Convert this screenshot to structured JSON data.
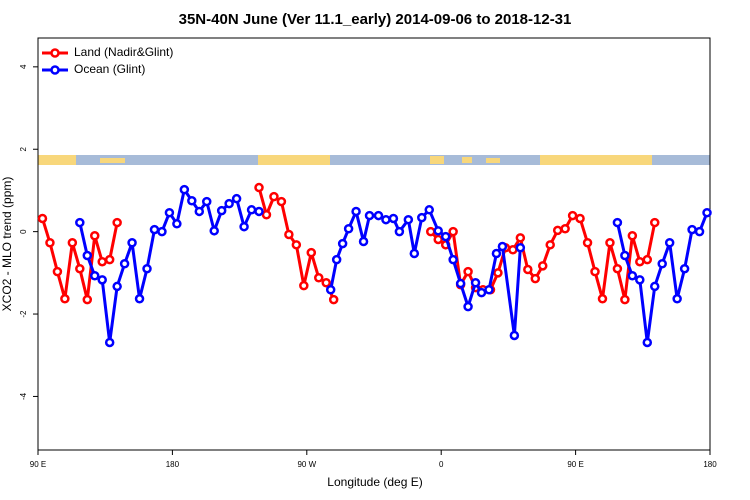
{
  "chart_data": {
    "type": "line",
    "title": "35N-40N June (Ver 11.1_early)   2014-09-06 to 2018-12-31",
    "x_label": "Longitude (deg E)",
    "y_label": "XCO2 - MLO trend (ppm)",
    "xlim": [
      90,
      540
    ],
    "ylim": [
      -5.3,
      4.7
    ],
    "xticks": [
      {
        "value": 90,
        "label": "90 E"
      },
      180,
      {
        "value": 270,
        "label": "90 W"
      },
      {
        "value": 360,
        "label": "0"
      },
      {
        "value": 450,
        "label": "90 E"
      },
      {
        "value": 540,
        "label": "180"
      }
    ],
    "yticks": [
      -4,
      -2,
      0,
      2,
      4
    ],
    "legend": "top-left",
    "series": [
      {
        "name": "Land (Nadir&Glint)",
        "color": "#ff0000",
        "x": [
          93,
          98,
          103,
          108,
          113,
          118,
          123,
          128,
          133,
          138,
          143,
          null,
          238,
          243,
          248,
          253,
          258,
          263,
          268,
          273,
          278,
          283,
          288,
          null,
          353,
          358,
          363,
          368,
          373,
          378,
          383,
          388,
          393,
          398,
          403,
          408,
          413,
          418,
          423,
          428,
          433,
          438,
          443,
          448,
          453,
          458,
          463,
          468,
          473,
          478,
          483,
          488,
          493,
          498,
          503
        ],
        "values": [
          0.32,
          -0.27,
          -0.97,
          -1.63,
          -0.27,
          -0.9,
          -1.65,
          -0.1,
          -0.73,
          -0.68,
          0.22,
          null,
          1.07,
          0.41,
          0.85,
          0.73,
          -0.07,
          -0.32,
          -1.31,
          -0.51,
          -1.12,
          -1.24,
          -1.65,
          null,
          0,
          -0.19,
          -0.32,
          0,
          -1.29,
          -0.97,
          -1.36,
          -1.41,
          -1.41,
          -1.0,
          -0.39,
          -0.44,
          -0.15,
          -0.92,
          -1.14,
          -0.83,
          -0.32,
          0.03,
          0.07,
          0.39,
          0.32,
          -0.27,
          -0.97,
          -1.63,
          -0.27,
          -0.9,
          -1.65,
          -0.1,
          -0.73,
          -0.68,
          0.22
        ]
      },
      {
        "name": "Ocean (Glint)",
        "color": "#0000ff",
        "x": [
          118,
          123,
          128,
          133,
          138,
          143,
          148,
          153,
          158,
          163,
          168,
          173,
          178,
          183,
          188,
          193,
          198,
          203,
          208,
          213,
          218,
          223,
          228,
          233,
          238,
          null,
          286,
          290,
          294,
          298,
          303,
          308,
          312,
          318,
          323,
          328,
          332,
          338,
          342,
          347,
          352,
          358,
          363,
          368,
          373,
          378,
          383,
          387,
          392,
          397,
          401,
          409,
          413,
          null,
          478,
          483,
          488,
          493,
          498,
          503,
          508,
          513,
          518,
          523,
          528,
          533,
          538
        ],
        "values": [
          0.22,
          -0.58,
          -1.07,
          -1.17,
          -2.69,
          -1.33,
          -0.78,
          -0.27,
          -1.63,
          -0.9,
          0.05,
          0,
          0.46,
          0.19,
          1.02,
          0.75,
          0.49,
          0.73,
          0.02,
          0.51,
          0.68,
          0.8,
          0.12,
          0.53,
          0.49,
          null,
          -1.41,
          -0.68,
          -0.29,
          0.07,
          0.49,
          -0.24,
          0.39,
          0.39,
          0.29,
          0.32,
          0,
          0.29,
          -0.53,
          0.34,
          0.53,
          0.02,
          -0.12,
          -0.68,
          -1.26,
          -1.82,
          -1.24,
          -1.48,
          -1.41,
          -0.53,
          -0.36,
          -2.52,
          -0.39,
          null,
          0.22,
          -0.58,
          -1.07,
          -1.17,
          -2.69,
          -1.33,
          -0.78,
          -0.27,
          -1.63,
          -0.9,
          0.05,
          0,
          0.46
        ]
      }
    ]
  }
}
